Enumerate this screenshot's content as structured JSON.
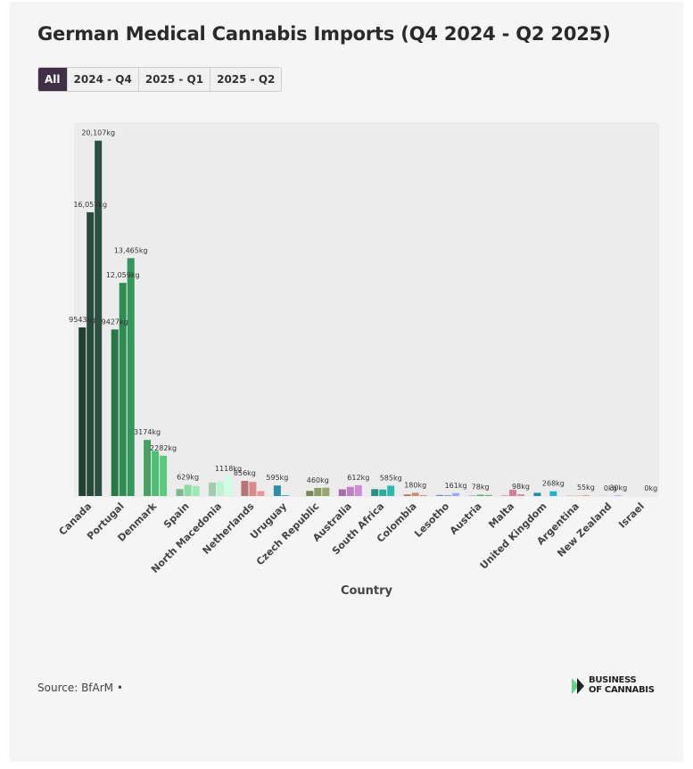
{
  "title": "German Medical Cannabis Imports (Q4 2024 - Q2 2025)",
  "filters": {
    "tabs": [
      "All",
      "2024 - Q4",
      "2025 - Q1",
      "2025 - Q2"
    ],
    "active": "All"
  },
  "source": "Source: BfArM •",
  "logo": {
    "line1": "BUSINESS",
    "line2": "OF CANNABIS"
  },
  "chart_data": {
    "type": "bar",
    "xlabel": "Country",
    "ylabel": "",
    "ylim": [
      0,
      21000
    ],
    "grid": false,
    "categories": [
      "Canada",
      "Portugal",
      "Denmark",
      "Spain",
      "North Macedonia",
      "Netherlands",
      "Uruguay",
      "Czech Republic",
      "Australia",
      "South Africa",
      "Colombia",
      "Lesotho",
      "Austria",
      "Malta",
      "United Kingdom",
      "Argentina",
      "New Zealand",
      "Israel"
    ],
    "series": [
      {
        "values": [
          9543,
          9427,
          3174,
          390,
          760,
          856,
          595,
          290,
          380,
          390,
          90,
          60,
          20,
          25,
          180,
          15,
          5,
          0
        ]
      },
      {
        "values": [
          16057,
          12059,
          2550,
          629,
          820,
          800,
          45,
          460,
          520,
          370,
          180,
          50,
          78,
          355,
          0,
          20,
          0,
          0
        ]
      },
      {
        "values": [
          20107,
          13465,
          2282,
          560,
          1118,
          280,
          0,
          470,
          612,
          585,
          55,
          161,
          60,
          98,
          268,
          55,
          30,
          0
        ]
      }
    ],
    "colors": [
      "#284a3c",
      "#2f8c54",
      "#52bc74",
      "#8fd9a4",
      "#bdf2d2",
      "#d88a8a",
      "#32a6c6",
      "#8e9c62",
      "#c080c5",
      "#2aaba0",
      "#cc8d6e",
      "#8f9ee2",
      "#63a87a",
      "#d07f97",
      "#1ea6bf",
      "#c7a67e",
      "#8c8cdc",
      "#999999"
    ],
    "data_labels": [
      {
        "text": "9543kg",
        "category": 0,
        "series": 0
      },
      {
        "text": "16,057kg",
        "category": 0,
        "series": 1
      },
      {
        "text": "20,107kg",
        "category": 0,
        "series": 2
      },
      {
        "text": "9427kg",
        "category": 1,
        "series": 0
      },
      {
        "text": "12,059kg",
        "category": 1,
        "series": 1
      },
      {
        "text": "13,465kg",
        "category": 1,
        "series": 2
      },
      {
        "text": "3174kg",
        "category": 2,
        "series": 0
      },
      {
        "text": "2282kg",
        "category": 2,
        "series": 2
      },
      {
        "text": "629kg",
        "category": 3,
        "series": 1
      },
      {
        "text": "1118kg",
        "category": 4,
        "series": 2
      },
      {
        "text": "856kg",
        "category": 5,
        "series": 0
      },
      {
        "text": "595kg",
        "category": 6,
        "series": 0
      },
      {
        "text": "460kg",
        "category": 7,
        "series": 1
      },
      {
        "text": "612kg",
        "category": 8,
        "series": 2
      },
      {
        "text": "585kg",
        "category": 9,
        "series": 2
      },
      {
        "text": "180kg",
        "category": 10,
        "series": 1
      },
      {
        "text": "161kg",
        "category": 11,
        "series": 2
      },
      {
        "text": "78kg",
        "category": 12,
        "series": 1
      },
      {
        "text": "98kg",
        "category": 13,
        "series": 2
      },
      {
        "text": "268kg",
        "category": 14,
        "series": 2
      },
      {
        "text": "55kg",
        "category": 15,
        "series": 2
      },
      {
        "text": "30kg",
        "category": 16,
        "series": 2
      },
      {
        "text": "0kg",
        "category": 16,
        "series": 1
      },
      {
        "text": "0kg",
        "category": 17,
        "series": 2
      }
    ]
  }
}
